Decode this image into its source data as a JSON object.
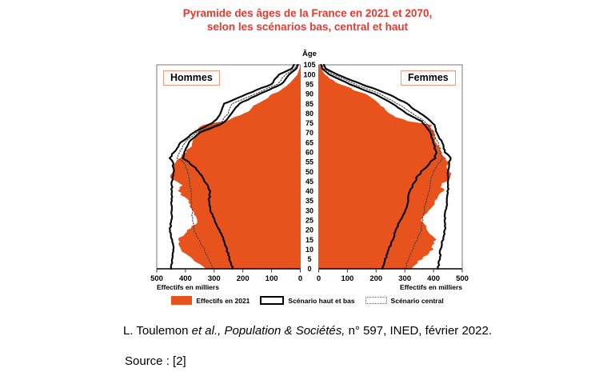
{
  "title": {
    "line1": "Pyramide des âges de la France en 2021 et 2070,",
    "line2": "selon les scénarios bas, central et haut"
  },
  "chart_data": {
    "type": "population-pyramid",
    "male_label": "Hommes",
    "female_label": "Femmes",
    "age_label": "Âge",
    "x_axis_label": "Effectifs en milliers",
    "unit": "milliers",
    "xlim": [
      0,
      500
    ],
    "x_ticks": [
      0,
      100,
      200,
      300,
      400,
      500
    ],
    "age_range": [
      0,
      105
    ],
    "age_ticks": [
      0,
      5,
      10,
      15,
      20,
      25,
      30,
      35,
      40,
      45,
      50,
      55,
      60,
      65,
      70,
      75,
      80,
      85,
      90,
      95,
      100,
      105
    ],
    "anchor_ages": [
      0,
      5,
      10,
      15,
      20,
      25,
      30,
      35,
      40,
      43,
      47,
      50,
      55,
      57,
      60,
      65,
      70,
      74,
      76,
      80,
      85,
      90,
      95,
      100,
      103,
      105
    ],
    "series": {
      "male_2021": [
        330,
        375,
        415,
        424,
        388,
        356,
        374,
        392,
        424,
        412,
        458,
        448,
        430,
        421,
        400,
        374,
        356,
        345,
        262,
        195,
        150,
        95,
        40,
        10,
        3,
        1
      ],
      "female_2021": [
        325,
        358,
        396,
        405,
        378,
        355,
        385,
        406,
        436,
        424,
        462,
        455,
        448,
        440,
        428,
        408,
        400,
        392,
        305,
        245,
        210,
        160,
        75,
        22,
        8,
        3
      ],
      "male_2070_high": [
        450,
        446,
        440,
        448,
        453,
        450,
        447,
        448,
        447,
        447,
        447,
        439,
        445,
        455,
        440,
        415,
        372,
        320,
        298,
        279,
        265,
        186,
        100,
        74,
        30,
        22
      ],
      "male_2070_central": [
        305,
        318,
        335,
        352,
        372,
        375,
        377,
        380,
        381,
        383,
        386,
        393,
        405,
        428,
        420,
        402,
        362,
        296,
        273,
        251,
        237,
        158,
        80,
        51,
        20,
        13
      ],
      "male_2070_low": [
        236,
        246,
        256,
        268,
        282,
        298,
        312,
        318,
        314,
        324,
        340,
        352,
        390,
        410,
        402,
        390,
        352,
        283,
        259,
        237,
        214,
        140,
        66,
        39,
        14,
        8
      ],
      "female_2070_high": [
        415,
        422,
        424,
        432,
        440,
        440,
        442,
        447,
        450,
        451,
        452,
        450,
        456,
        460,
        440,
        430,
        412,
        403,
        392,
        353,
        307,
        242,
        149,
        65,
        25,
        18
      ],
      "female_2070_central": [
        300,
        312,
        326,
        342,
        358,
        362,
        368,
        375,
        385,
        388,
        392,
        400,
        420,
        430,
        425,
        415,
        398,
        380,
        370,
        326,
        274,
        214,
        126,
        51,
        18,
        12
      ],
      "female_2070_low": [
        222,
        232,
        244,
        258,
        268,
        285,
        302,
        310,
        318,
        328,
        342,
        358,
        390,
        405,
        408,
        400,
        390,
        368,
        356,
        307,
        256,
        195,
        107,
        37,
        12,
        8
      ]
    },
    "legend": [
      {
        "label": "Effectifs en 2021",
        "style": "orange-fill"
      },
      {
        "label": "Scénario haut et bas",
        "style": "solid-outline"
      },
      {
        "label": "Scénario central",
        "style": "dotted-outline"
      }
    ],
    "colors": {
      "fill_2021": "#e8531d",
      "scenario_line": "#0a0a0a",
      "central_line": "#444444",
      "title": "#e8392f",
      "label_box_border": "#f09a7d",
      "plot_border": "#777777",
      "axis": "#000000"
    }
  },
  "citation": {
    "part1": "L. Toulemon ",
    "part2": "et al., ",
    "part3": "Population & Sociétés,",
    "part4": " n° 597, INED, février 2022."
  },
  "source": {
    "label": "Source : [2]"
  }
}
